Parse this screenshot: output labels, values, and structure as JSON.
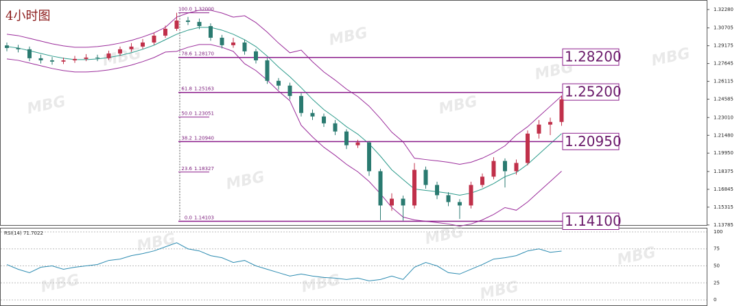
{
  "chart_data": {
    "type": "candlestick",
    "title": "4小时图",
    "watermark": "MBG",
    "ylim": [
      1.1366,
      1.331
    ],
    "yticks": [
      {
        "value": 1.3228,
        "label": "1.32280"
      },
      {
        "value": 1.30705,
        "label": "1.30705"
      },
      {
        "value": 1.29175,
        "label": "1.29175"
      },
      {
        "value": 1.27645,
        "label": "1.27645"
      },
      {
        "value": 1.26115,
        "label": "1.26115"
      },
      {
        "value": 1.24585,
        "label": "1.24585"
      },
      {
        "value": 1.2301,
        "label": "1.23010"
      },
      {
        "value": 1.2148,
        "label": "1.21480"
      },
      {
        "value": 1.1995,
        "label": "1.19950"
      },
      {
        "value": 1.18375,
        "label": "1.18375"
      },
      {
        "value": 1.16845,
        "label": "1.16845"
      },
      {
        "value": 1.15315,
        "label": "1.15315"
      },
      {
        "value": 1.13785,
        "label": "1.13785"
      }
    ],
    "up_color": "#c0304a",
    "down_color": "#2a7a70",
    "open": [
      1.292,
      1.2898,
      1.2887,
      1.281,
      1.2792,
      1.2781,
      1.2792,
      1.2804,
      1.2816,
      1.281,
      1.2851,
      1.2887,
      1.291,
      1.2945,
      1.3004,
      1.3063,
      1.3134,
      1.3122,
      1.3086,
      1.2986,
      1.2922,
      1.2945,
      1.2869,
      1.2792,
      1.2616,
      1.2575,
      1.2486,
      1.234,
      1.231,
      1.2251,
      1.2181,
      1.2063,
      1.2087,
      1.184,
      1.1546,
      1.1604,
      1.1546,
      1.1852,
      1.1722,
      1.1634,
      1.1575,
      1.1546,
      1.1722,
      1.1793,
      1.1928,
      1.184,
      1.1911,
      1.2163,
      1.224,
      1.2263
    ],
    "high": [
      1.2945,
      1.2925,
      1.291,
      1.284,
      1.282,
      1.2815,
      1.283,
      1.2845,
      1.284,
      1.2875,
      1.291,
      1.294,
      1.2975,
      1.303,
      1.309,
      1.32,
      1.3165,
      1.315,
      1.311,
      1.301,
      1.2985,
      1.297,
      1.289,
      1.281,
      1.264,
      1.26,
      1.251,
      1.237,
      1.2335,
      1.228,
      1.22,
      1.211,
      1.21,
      1.186,
      1.165,
      1.163,
      1.191,
      1.188,
      1.175,
      1.166,
      1.16,
      1.175,
      1.182,
      1.196,
      1.195,
      1.194,
      1.219,
      1.228,
      1.23,
      1.249
    ],
    "low": [
      1.287,
      1.286,
      1.2785,
      1.2765,
      1.2755,
      1.276,
      1.277,
      1.2785,
      1.2785,
      1.2795,
      1.283,
      1.2865,
      1.289,
      1.2925,
      1.2985,
      1.3045,
      1.3095,
      1.306,
      1.296,
      1.2895,
      1.29,
      1.284,
      1.2765,
      1.259,
      1.254,
      1.2455,
      1.231,
      1.228,
      1.222,
      1.215,
      1.203,
      1.204,
      1.18,
      1.142,
      1.15,
      1.1415,
      1.152,
      1.169,
      1.16,
      1.154,
      1.143,
      1.152,
      1.17,
      1.177,
      1.17,
      1.181,
      1.189,
      1.212,
      1.215,
      1.223
    ],
    "close": [
      1.2898,
      1.2887,
      1.281,
      1.2792,
      1.2781,
      1.2792,
      1.2804,
      1.2816,
      1.281,
      1.2851,
      1.2887,
      1.291,
      1.2945,
      1.3004,
      1.3063,
      1.3134,
      1.3122,
      1.3086,
      1.2986,
      1.2922,
      1.2945,
      1.2869,
      1.2792,
      1.2616,
      1.2575,
      1.2486,
      1.234,
      1.231,
      1.2251,
      1.2181,
      1.2063,
      1.2087,
      1.184,
      1.1546,
      1.1604,
      1.1546,
      1.1852,
      1.1722,
      1.1634,
      1.1575,
      1.1546,
      1.1722,
      1.1793,
      1.1928,
      1.184,
      1.1911,
      1.2163,
      1.224,
      1.2263,
      1.2457
    ],
    "bands": {
      "band_color": "#9a2a9a",
      "middle_color": "#2a9a8a",
      "upper": [
        1.3016,
        1.3004,
        1.2981,
        1.2957,
        1.2934,
        1.2916,
        1.2904,
        1.2904,
        1.291,
        1.2922,
        1.294,
        1.2963,
        1.2993,
        1.3028,
        1.3075,
        1.3163,
        1.3198,
        1.3222,
        1.3222,
        1.3198,
        1.3163,
        1.3175,
        1.3116,
        1.3034,
        1.294,
        1.2857,
        1.288,
        1.278,
        1.2692,
        1.2622,
        1.2545,
        1.2481,
        1.2398,
        1.2292,
        1.2175,
        1.2092,
        1.1952,
        1.194,
        1.1929,
        1.1917,
        1.1899,
        1.1917,
        1.1952,
        1.1999,
        1.2058,
        1.2151,
        1.2222,
        1.231,
        1.2398,
        1.2486
      ],
      "middle": [
        1.291,
        1.2898,
        1.2875,
        1.2851,
        1.2828,
        1.281,
        1.2798,
        1.2798,
        1.2804,
        1.2816,
        1.2834,
        1.2857,
        1.2887,
        1.2922,
        1.2969,
        1.3016,
        1.3051,
        1.3075,
        1.3075,
        1.3051,
        1.3016,
        1.2969,
        1.291,
        1.2828,
        1.2734,
        1.2651,
        1.2557,
        1.2457,
        1.2369,
        1.2299,
        1.2222,
        1.2158,
        1.2075,
        1.1969,
        1.1852,
        1.1769,
        1.1687,
        1.1675,
        1.1664,
        1.1652,
        1.1634,
        1.1652,
        1.1687,
        1.1734,
        1.1793,
        1.1828,
        1.1899,
        1.1987,
        1.2075,
        1.2163
      ],
      "lower": [
        1.2804,
        1.2792,
        1.2769,
        1.2745,
        1.2722,
        1.2704,
        1.2692,
        1.2692,
        1.2698,
        1.271,
        1.2728,
        1.2751,
        1.2781,
        1.2816,
        1.2863,
        1.2869,
        1.2904,
        1.2928,
        1.2928,
        1.2904,
        1.2869,
        1.2763,
        1.2704,
        1.2622,
        1.2528,
        1.2445,
        1.2234,
        1.2134,
        1.2046,
        1.1976,
        1.1899,
        1.1835,
        1.1752,
        1.1646,
        1.1529,
        1.1446,
        1.1422,
        1.141,
        1.1399,
        1.1387,
        1.1369,
        1.1387,
        1.1422,
        1.1469,
        1.1528,
        1.1505,
        1.1576,
        1.1664,
        1.1752,
        1.184
      ]
    },
    "fib_color": "#8a1a8a",
    "fibonacci": [
      {
        "level": {
          "value": 100,
          "label": "100.0"
        },
        "price": {
          "value": 1.32,
          "label": "1.32000"
        },
        "extended": false
      },
      {
        "level": 78.6,
        "price": {
          "value": 1.2817,
          "label": "1.28170"
        },
        "extended": true
      },
      {
        "level": 61.8,
        "price": 1.25163,
        "extended": true
      },
      {
        "level": {
          "value": 50,
          "label": "50.0"
        },
        "price": 1.23051,
        "extended": false
      },
      {
        "level": 38.2,
        "price": {
          "value": 1.2094,
          "label": "1.20940"
        },
        "extended": true
      },
      {
        "level": 23.6,
        "price": 1.18327,
        "extended": false
      },
      {
        "level": {
          "value": 0,
          "label": "0.0"
        },
        "price": 1.14103,
        "extended": true
      }
    ],
    "targets": [
      {
        "value": 1.282,
        "label": "1.28200"
      },
      {
        "value": 1.252,
        "label": "1.25200"
      },
      {
        "value": 1.2095,
        "label": "1.20950"
      },
      {
        "value": 1.141,
        "label": "1.14100"
      }
    ],
    "rsi": {
      "label": "RSI(14) 71.7022",
      "color": "#2a8ab0",
      "ylim": [
        -9,
        106
      ],
      "yticks": [
        0,
        25,
        50,
        75,
        100
      ],
      "values": [
        52,
        45,
        40,
        48,
        50,
        45,
        48,
        50,
        52,
        58,
        60,
        65,
        68,
        72,
        78,
        84,
        75,
        72,
        65,
        62,
        55,
        58,
        50,
        45,
        40,
        35,
        38,
        35,
        33,
        32,
        30,
        32,
        28,
        30,
        35,
        30,
        48,
        55,
        50,
        40,
        38,
        45,
        52,
        60,
        62,
        65,
        72,
        75,
        70,
        71.7
      ]
    }
  }
}
